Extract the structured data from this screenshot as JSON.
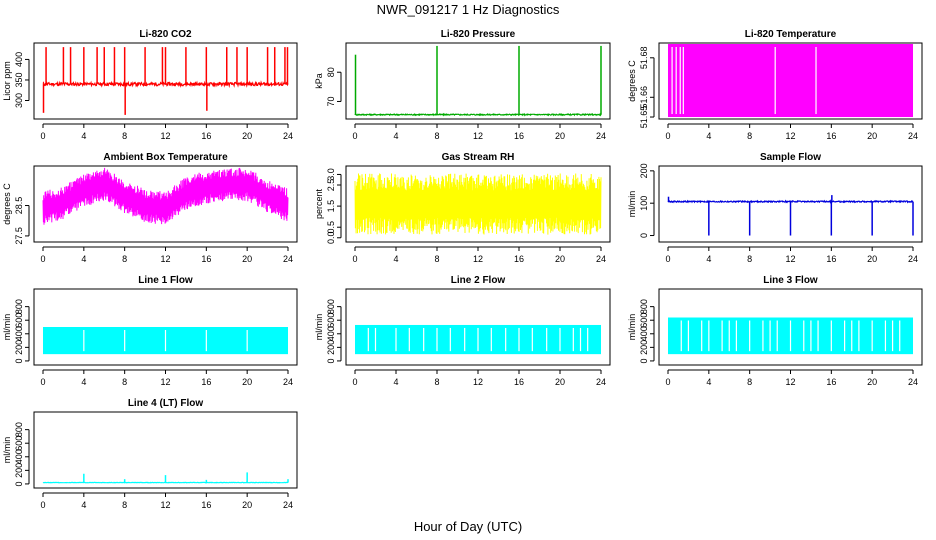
{
  "title": "NWR_091217  1 Hz Diagnostics",
  "x_axis_title": "Hour of Day (UTC)",
  "chart_data": [
    {
      "type": "line",
      "title": "Li-820 CO2",
      "xlabel": "",
      "ylabel": "Licor ppm",
      "color": "#ff0000",
      "xlim": [
        0,
        24
      ],
      "ylim": [
        255,
        440
      ],
      "x_ticks": [
        "0",
        "4",
        "8",
        "12",
        "16",
        "20",
        "24"
      ],
      "y_ticks": [
        {
          "value": 300,
          "label": "300"
        },
        {
          "value": 350,
          "label": "350"
        },
        {
          "value": 400,
          "label": "400"
        }
      ],
      "pattern": "spikes",
      "base": 340,
      "noise": 4,
      "spikes": [
        [
          0.05,
          270
        ],
        [
          0.3,
          430
        ],
        [
          2,
          430
        ],
        [
          2.7,
          430
        ],
        [
          4,
          430
        ],
        [
          5.3,
          430
        ],
        [
          6,
          430
        ],
        [
          7,
          430
        ],
        [
          8,
          430
        ],
        [
          8.05,
          265
        ],
        [
          10,
          430
        ],
        [
          11.7,
          430
        ],
        [
          12,
          430
        ],
        [
          14,
          430
        ],
        [
          16,
          430
        ],
        [
          16.05,
          275
        ],
        [
          18,
          430
        ],
        [
          19,
          430
        ],
        [
          20,
          430
        ],
        [
          22,
          430
        ],
        [
          22.7,
          430
        ],
        [
          23.7,
          430
        ],
        [
          23.95,
          430
        ]
      ]
    },
    {
      "type": "line",
      "title": "Li-820 Pressure",
      "xlabel": "",
      "ylabel": "kPa",
      "color": "#00aa00",
      "xlim": [
        0,
        24
      ],
      "ylim": [
        64,
        90
      ],
      "x_ticks": [
        "0",
        "4",
        "8",
        "12",
        "16",
        "20",
        "24"
      ],
      "y_ticks": [
        {
          "value": 70,
          "label": "70"
        },
        {
          "value": 80,
          "label": "80"
        }
      ],
      "pattern": "spikes",
      "base": 65.5,
      "noise": 0.2,
      "spikes": [
        [
          0.05,
          86
        ],
        [
          8,
          89
        ],
        [
          16,
          89
        ],
        [
          24,
          89
        ]
      ]
    },
    {
      "type": "area",
      "title": "Li-820 Temperature",
      "xlabel": "",
      "ylabel": "degrees C",
      "color": "#ff00ff",
      "xlim": [
        0,
        24
      ],
      "ylim": [
        51.649,
        51.6875
      ],
      "x_ticks": [
        "0",
        "4",
        "8",
        "12",
        "16",
        "20",
        "24"
      ],
      "y_ticks": [
        {
          "value": 51.65,
          "label": "51.65"
        },
        {
          "value": 51.66,
          "label": "51.66"
        },
        {
          "value": 51.68,
          "label": "51.68"
        }
      ],
      "pattern": "band",
      "band": [
        51.65,
        51.687
      ],
      "gaps": [
        0.4,
        0.8,
        1.2,
        1.5,
        10.5,
        14.5
      ]
    },
    {
      "type": "line",
      "title": "Ambient Box Temperature",
      "xlabel": "",
      "ylabel": "degrees C",
      "color": "#ff00ff",
      "xlim": [
        0,
        24
      ],
      "ylim": [
        27.3,
        29.8
      ],
      "x_ticks": [
        "0",
        "4",
        "8",
        "12",
        "16",
        "20",
        "24"
      ],
      "y_ticks": [
        {
          "value": 27.5,
          "label": "27.5"
        },
        {
          "value": 28.5,
          "label": "28.5"
        }
      ],
      "pattern": "noise-band",
      "mid": [
        [
          0,
          28.4
        ],
        [
          2,
          28.6
        ],
        [
          4,
          29.0
        ],
        [
          6,
          29.2
        ],
        [
          8,
          28.8
        ],
        [
          10,
          28.5
        ],
        [
          12,
          28.4
        ],
        [
          14,
          28.9
        ],
        [
          16,
          29.1
        ],
        [
          18,
          29.2
        ],
        [
          20,
          29.2
        ],
        [
          22,
          28.8
        ],
        [
          24,
          28.5
        ]
      ],
      "halfwidth": 0.55
    },
    {
      "type": "line",
      "title": "Gas Stream RH",
      "xlabel": "",
      "ylabel": "percent",
      "color": "#ffff00",
      "xlim": [
        0,
        24
      ],
      "ylim": [
        -0.2,
        3.4
      ],
      "x_ticks": [
        "0",
        "4",
        "8",
        "12",
        "16",
        "20",
        "24"
      ],
      "y_ticks": [
        {
          "value": 0,
          "label": "0.0"
        },
        {
          "value": 0.5,
          "label": "0.5"
        },
        {
          "value": 1.5,
          "label": "1.5"
        },
        {
          "value": 2.5,
          "label": "2.5"
        },
        {
          "value": 3.0,
          "label": "3.0"
        }
      ],
      "pattern": "noise-band",
      "mid": [
        [
          0,
          1.6
        ],
        [
          24,
          1.6
        ]
      ],
      "halfwidth": 1.45
    },
    {
      "type": "line",
      "title": "Sample Flow",
      "xlabel": "",
      "ylabel": "ml/min",
      "color": "#0000dd",
      "xlim": [
        0,
        24
      ],
      "ylim": [
        -20,
        215
      ],
      "x_ticks": [
        "0",
        "4",
        "8",
        "12",
        "16",
        "20",
        "24"
      ],
      "y_ticks": [
        {
          "value": 0,
          "label": "0"
        },
        {
          "value": 100,
          "label": "100"
        },
        {
          "value": 200,
          "label": "200"
        }
      ],
      "pattern": "spikes",
      "base": 105,
      "noise": 2,
      "spikes": [
        [
          0.05,
          120
        ],
        [
          4,
          0
        ],
        [
          8,
          0
        ],
        [
          12,
          0
        ],
        [
          16,
          0
        ],
        [
          16.05,
          125
        ],
        [
          20,
          0
        ],
        [
          24,
          0
        ]
      ]
    },
    {
      "type": "area",
      "title": "Line 1 Flow",
      "xlabel": "",
      "ylabel": "ml/min",
      "color": "#00ffff",
      "xlim": [
        0,
        24
      ],
      "ylim": [
        -60,
        1060
      ],
      "x_ticks": [
        "0",
        "4",
        "8",
        "12",
        "16",
        "20",
        "24"
      ],
      "y_ticks": [
        {
          "value": 0,
          "label": "0"
        },
        {
          "value": 200,
          "label": "200"
        },
        {
          "value": 400,
          "label": "400"
        },
        {
          "value": 600,
          "label": "600"
        },
        {
          "value": 800,
          "label": "800"
        }
      ],
      "pattern": "band",
      "band": [
        100,
        500
      ],
      "gaps": [
        4,
        8,
        12,
        16,
        20
      ]
    },
    {
      "type": "area",
      "title": "Line 2 Flow",
      "xlabel": "",
      "ylabel": "ml/min",
      "color": "#00ffff",
      "xlim": [
        0,
        24
      ],
      "ylim": [
        -60,
        1060
      ],
      "x_ticks": [
        "0",
        "4",
        "8",
        "12",
        "16",
        "20",
        "24"
      ],
      "y_ticks": [
        {
          "value": 0,
          "label": "0"
        },
        {
          "value": 200,
          "label": "200"
        },
        {
          "value": 400,
          "label": "400"
        },
        {
          "value": 600,
          "label": "600"
        },
        {
          "value": 800,
          "label": "800"
        }
      ],
      "pattern": "band",
      "band": [
        100,
        530
      ],
      "gaps": [
        1.3,
        2.0,
        4,
        5.3,
        6.7,
        8,
        9.3,
        10.7,
        12,
        13.3,
        14.7,
        16,
        17.3,
        18.7,
        20,
        21.3,
        22,
        22.7
      ]
    },
    {
      "type": "area",
      "title": "Line 3 Flow",
      "xlabel": "",
      "ylabel": "ml/min",
      "color": "#00ffff",
      "xlim": [
        0,
        24
      ],
      "ylim": [
        -60,
        1060
      ],
      "x_ticks": [
        "0",
        "4",
        "8",
        "12",
        "16",
        "20",
        "24"
      ],
      "y_ticks": [
        {
          "value": 0,
          "label": "0"
        },
        {
          "value": 200,
          "label": "200"
        },
        {
          "value": 400,
          "label": "400"
        },
        {
          "value": 600,
          "label": "600"
        },
        {
          "value": 800,
          "label": "800"
        }
      ],
      "pattern": "band",
      "band": [
        100,
        640
      ],
      "gaps": [
        1.3,
        2.0,
        3.3,
        4,
        5.3,
        6.0,
        6.7,
        8,
        9.3,
        10.0,
        10.7,
        12,
        13.3,
        14.0,
        14.7,
        16,
        17.3,
        18.0,
        18.7,
        20,
        21.3,
        22.0,
        22.7
      ]
    },
    {
      "type": "line",
      "title": "Line 4 (LT) Flow",
      "xlabel": "",
      "ylabel": "ml/min",
      "color": "#00ffff",
      "xlim": [
        0,
        24
      ],
      "ylim": [
        -60,
        1060
      ],
      "x_ticks": [
        "0",
        "4",
        "8",
        "12",
        "16",
        "20",
        "24"
      ],
      "y_ticks": [
        {
          "value": 0,
          "label": "0"
        },
        {
          "value": 200,
          "label": "200"
        },
        {
          "value": 400,
          "label": "400"
        },
        {
          "value": 600,
          "label": "600"
        },
        {
          "value": 800,
          "label": "800"
        }
      ],
      "pattern": "spikes",
      "base": 20,
      "noise": 3,
      "spikes": [
        [
          4,
          150
        ],
        [
          8,
          70
        ],
        [
          12,
          130
        ],
        [
          16,
          60
        ],
        [
          20,
          170
        ],
        [
          24,
          70
        ]
      ]
    }
  ]
}
